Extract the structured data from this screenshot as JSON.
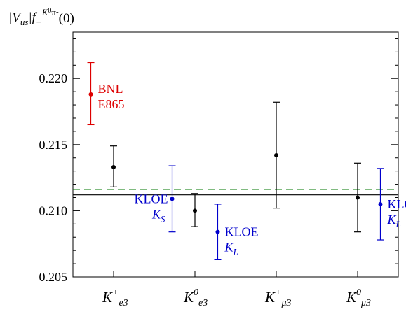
{
  "chart_data": {
    "type": "scatter",
    "ylabel": {
      "base": "|V",
      "us": "us",
      "bar": "|f",
      "plus": "+",
      "sup_K": "K",
      "sup_0": "0",
      "sup_pi": "π",
      "sup_minus": "-",
      "tail": "(0)"
    },
    "ylim": [
      0.205,
      0.2235
    ],
    "yticks": [
      {
        "value": 0.205,
        "label": "0.205"
      },
      {
        "value": 0.21,
        "label": "0.210"
      },
      {
        "value": 0.215,
        "label": "0.215"
      },
      {
        "value": 0.22,
        "label": "0.220"
      }
    ],
    "categories": [
      {
        "base": "K",
        "sup": "+",
        "sub": "e3"
      },
      {
        "base": "K",
        "sup": "0",
        "sub": "e3"
      },
      {
        "base": "K",
        "sup": "+",
        "sub": "μ3"
      },
      {
        "base": "K",
        "sup": "0",
        "sub": "μ3"
      }
    ],
    "series": [
      {
        "color": "#000000",
        "points": [
          {
            "category": 0,
            "y": 0.2133,
            "low": 0.2118,
            "high": 0.2149
          },
          {
            "category": 1,
            "y": 0.21,
            "low": 0.2088,
            "high": 0.2113
          },
          {
            "category": 2,
            "y": 0.2142,
            "low": 0.2102,
            "high": 0.2182
          },
          {
            "category": 3,
            "y": 0.211,
            "low": 0.2084,
            "high": 0.2136
          }
        ]
      },
      {
        "color": "#dd0000",
        "points": [
          {
            "category": 0,
            "offset": -0.28,
            "y": 0.2188,
            "low": 0.2165,
            "high": 0.2212,
            "label": [
              "BNL",
              "E865"
            ]
          }
        ]
      },
      {
        "color": "#0000cc",
        "points": [
          {
            "category": 1,
            "offset": -0.28,
            "y": 0.2109,
            "low": 0.2084,
            "high": 0.2134,
            "label": [
              "KLOE",
              "K_S"
            ]
          },
          {
            "category": 1,
            "offset": 0.28,
            "y": 0.2084,
            "low": 0.2063,
            "high": 0.2105,
            "label": [
              "KLOE",
              "K_L"
            ]
          },
          {
            "category": 3,
            "offset": 0.28,
            "y": 0.2105,
            "low": 0.2078,
            "high": 0.2132,
            "label": [
              "KLOE",
              "K_L"
            ]
          }
        ]
      }
    ],
    "reference_lines": [
      {
        "y": 0.2112,
        "style": "solid",
        "color": "#000000"
      },
      {
        "y": 0.2116,
        "style": "dashed",
        "color": "#007700"
      }
    ],
    "grid": false
  }
}
